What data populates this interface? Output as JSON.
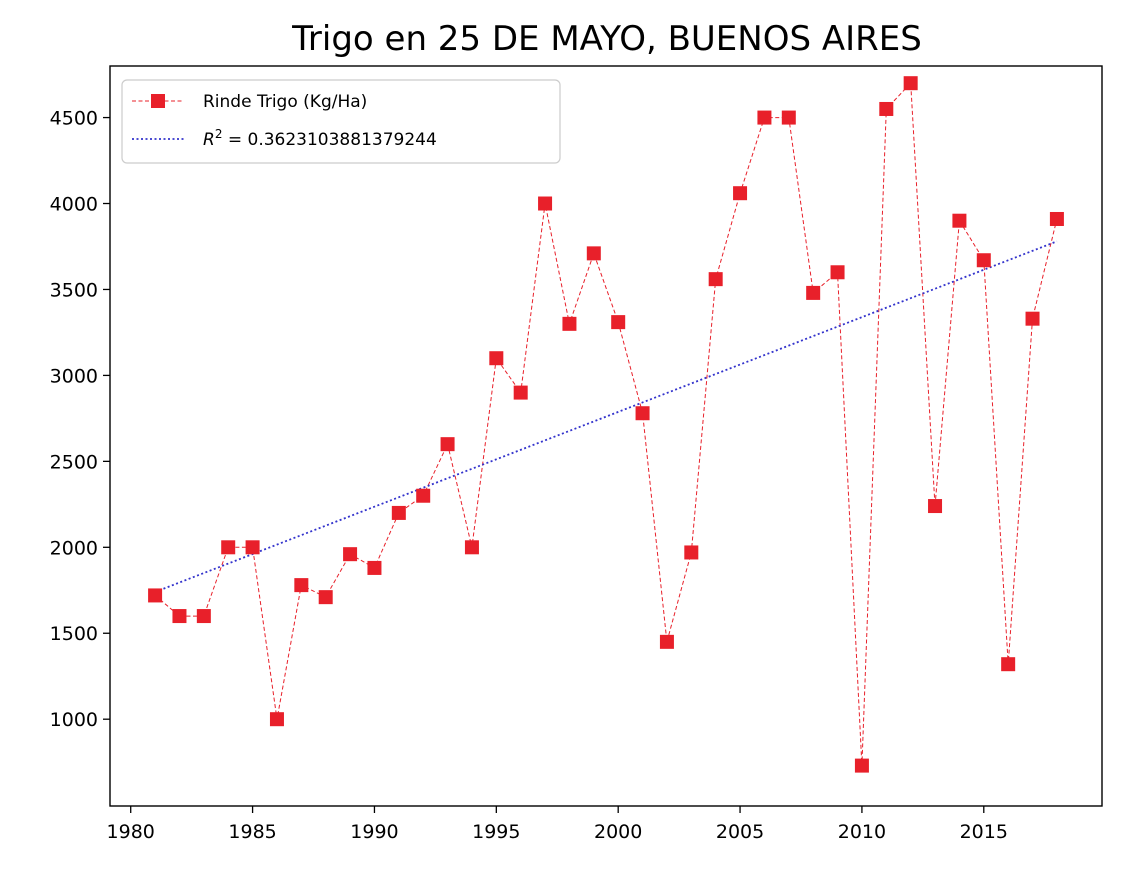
{
  "chart_data": {
    "type": "line",
    "title": "Trigo en 25 DE MAYO, BUENOS AIRES",
    "xlabel": "",
    "ylabel": "",
    "xlim": [
      1979.15,
      2019.85
    ],
    "ylim": [
      495,
      4800
    ],
    "xticks": [
      1980,
      1985,
      1990,
      1995,
      2000,
      2005,
      2010,
      2015
    ],
    "yticks": [
      1000,
      1500,
      2000,
      2500,
      3000,
      3500,
      4000,
      4500
    ],
    "grid": false,
    "legend_position": "top-left",
    "series": [
      {
        "name": "Rinde Trigo (Kg/Ha)",
        "color": "#e8202a",
        "line_style": "dashed",
        "marker": "square",
        "x": [
          1981,
          1982,
          1983,
          1984,
          1985,
          1986,
          1987,
          1988,
          1989,
          1990,
          1991,
          1992,
          1993,
          1994,
          1995,
          1996,
          1997,
          1998,
          1999,
          2000,
          2001,
          2002,
          2003,
          2004,
          2005,
          2006,
          2007,
          2008,
          2009,
          2010,
          2011,
          2012,
          2013,
          2014,
          2015,
          2016,
          2017,
          2018
        ],
        "y": [
          1720,
          1600,
          1600,
          2000,
          2000,
          1000,
          1780,
          1710,
          1960,
          1880,
          2200,
          2300,
          2600,
          2000,
          3100,
          2900,
          4000,
          3300,
          3710,
          3310,
          2780,
          1450,
          1970,
          3560,
          4060,
          4500,
          4500,
          3480,
          3600,
          730,
          4550,
          4700,
          2240,
          3900,
          3670,
          1320,
          3330,
          3910
        ]
      },
      {
        "name": "$R^2$ = 0.3623103881379244",
        "legend_label_prefix": "R",
        "legend_label_sup": "2",
        "legend_label_suffix": " = 0.3623103881379244",
        "color": "#3333cc",
        "line_style": "dotted",
        "type": "trendline",
        "x": [
          1981,
          2018
        ],
        "y": [
          1740,
          3780
        ]
      }
    ]
  }
}
